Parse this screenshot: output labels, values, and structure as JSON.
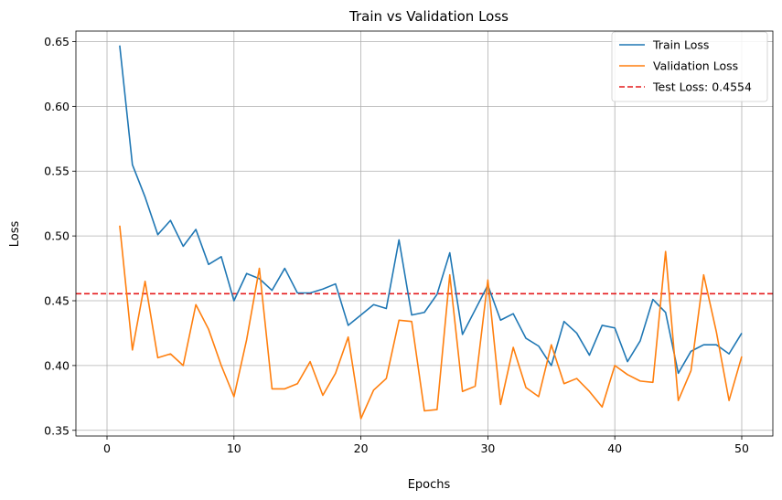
{
  "chart_data": {
    "type": "line",
    "title": "Train vs Validation Loss",
    "xlabel": "Epochs",
    "ylabel": "Loss",
    "xlim": [
      -2.45,
      52.45
    ],
    "ylim": [
      0.3456,
      0.6581
    ],
    "xticks": [
      0,
      10,
      20,
      30,
      40,
      50
    ],
    "yticks": [
      0.35,
      0.4,
      0.45,
      0.5,
      0.55,
      0.6,
      0.65
    ],
    "grid": true,
    "legend_position": "top-right",
    "x": [
      1,
      2,
      3,
      4,
      5,
      6,
      7,
      8,
      9,
      10,
      11,
      12,
      13,
      14,
      15,
      16,
      17,
      18,
      19,
      20,
      21,
      22,
      23,
      24,
      25,
      26,
      27,
      28,
      29,
      30,
      31,
      32,
      33,
      34,
      35,
      36,
      37,
      38,
      39,
      40,
      41,
      42,
      43,
      44,
      45,
      46,
      47,
      48,
      49,
      50
    ],
    "series": [
      {
        "name": "Train Loss",
        "color": "#1f77b4",
        "values": [
          0.647,
          0.555,
          0.53,
          0.501,
          0.512,
          0.492,
          0.505,
          0.478,
          0.484,
          0.45,
          0.471,
          0.467,
          0.458,
          0.475,
          0.456,
          0.456,
          0.459,
          0.463,
          0.431,
          0.439,
          0.447,
          0.444,
          0.497,
          0.439,
          0.441,
          0.455,
          0.487,
          0.424,
          0.443,
          0.462,
          0.435,
          0.44,
          0.421,
          0.415,
          0.4,
          0.434,
          0.425,
          0.408,
          0.431,
          0.429,
          0.403,
          0.419,
          0.451,
          0.441,
          0.394,
          0.411,
          0.416,
          0.416,
          0.409,
          0.425
        ]
      },
      {
        "name": "Validation Loss",
        "color": "#ff7f0e",
        "values": [
          0.508,
          0.412,
          0.465,
          0.406,
          0.409,
          0.4,
          0.447,
          0.428,
          0.4,
          0.376,
          0.42,
          0.475,
          0.382,
          0.382,
          0.386,
          0.403,
          0.377,
          0.394,
          0.422,
          0.359,
          0.381,
          0.39,
          0.435,
          0.434,
          0.365,
          0.366,
          0.47,
          0.38,
          0.384,
          0.466,
          0.37,
          0.414,
          0.383,
          0.376,
          0.416,
          0.386,
          0.39,
          0.38,
          0.368,
          0.4,
          0.393,
          0.388,
          0.387,
          0.488,
          0.373,
          0.396,
          0.47,
          0.426,
          0.373,
          0.407
        ]
      }
    ],
    "hlines": [
      {
        "name": "Test Loss: 0.4554",
        "value": 0.4554,
        "color": "#e41a1c",
        "style": "dashed"
      }
    ]
  }
}
